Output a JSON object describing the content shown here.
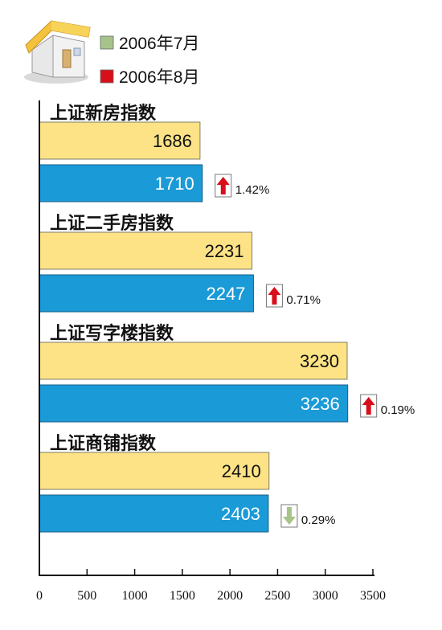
{
  "colors": {
    "aug_bar": "#1a9ad6",
    "jul_bar": "#fde386",
    "legend_jul": "#a6c48a",
    "legend_aug": "#d80f1b",
    "arrow_up": "#d80f1b",
    "arrow_down": "#a6c48a"
  },
  "icons": {
    "logo": "house-icon",
    "up": "arrow-up-icon",
    "down": "arrow-down-icon"
  },
  "chart_data": {
    "type": "bar",
    "orientation": "horizontal",
    "categories": [
      "上证新房指数",
      "上证二手房指数",
      "上证写字楼指数",
      "上证商铺指数"
    ],
    "series": [
      {
        "name": "2006年7月",
        "values": [
          1686,
          2231,
          3230,
          2410
        ]
      },
      {
        "name": "2006年8月",
        "values": [
          1710,
          2247,
          3236,
          2403
        ]
      }
    ],
    "changes": [
      {
        "direction": "up",
        "label": "1.42%"
      },
      {
        "direction": "up",
        "label": "0.71%"
      },
      {
        "direction": "up",
        "label": "0.19%"
      },
      {
        "direction": "down",
        "label": "0.29%"
      }
    ],
    "xlim": [
      0,
      3500
    ],
    "xticks": [
      0,
      500,
      1000,
      1500,
      2000,
      2500,
      3000,
      3500
    ],
    "legend_position": "top",
    "grid": false
  }
}
